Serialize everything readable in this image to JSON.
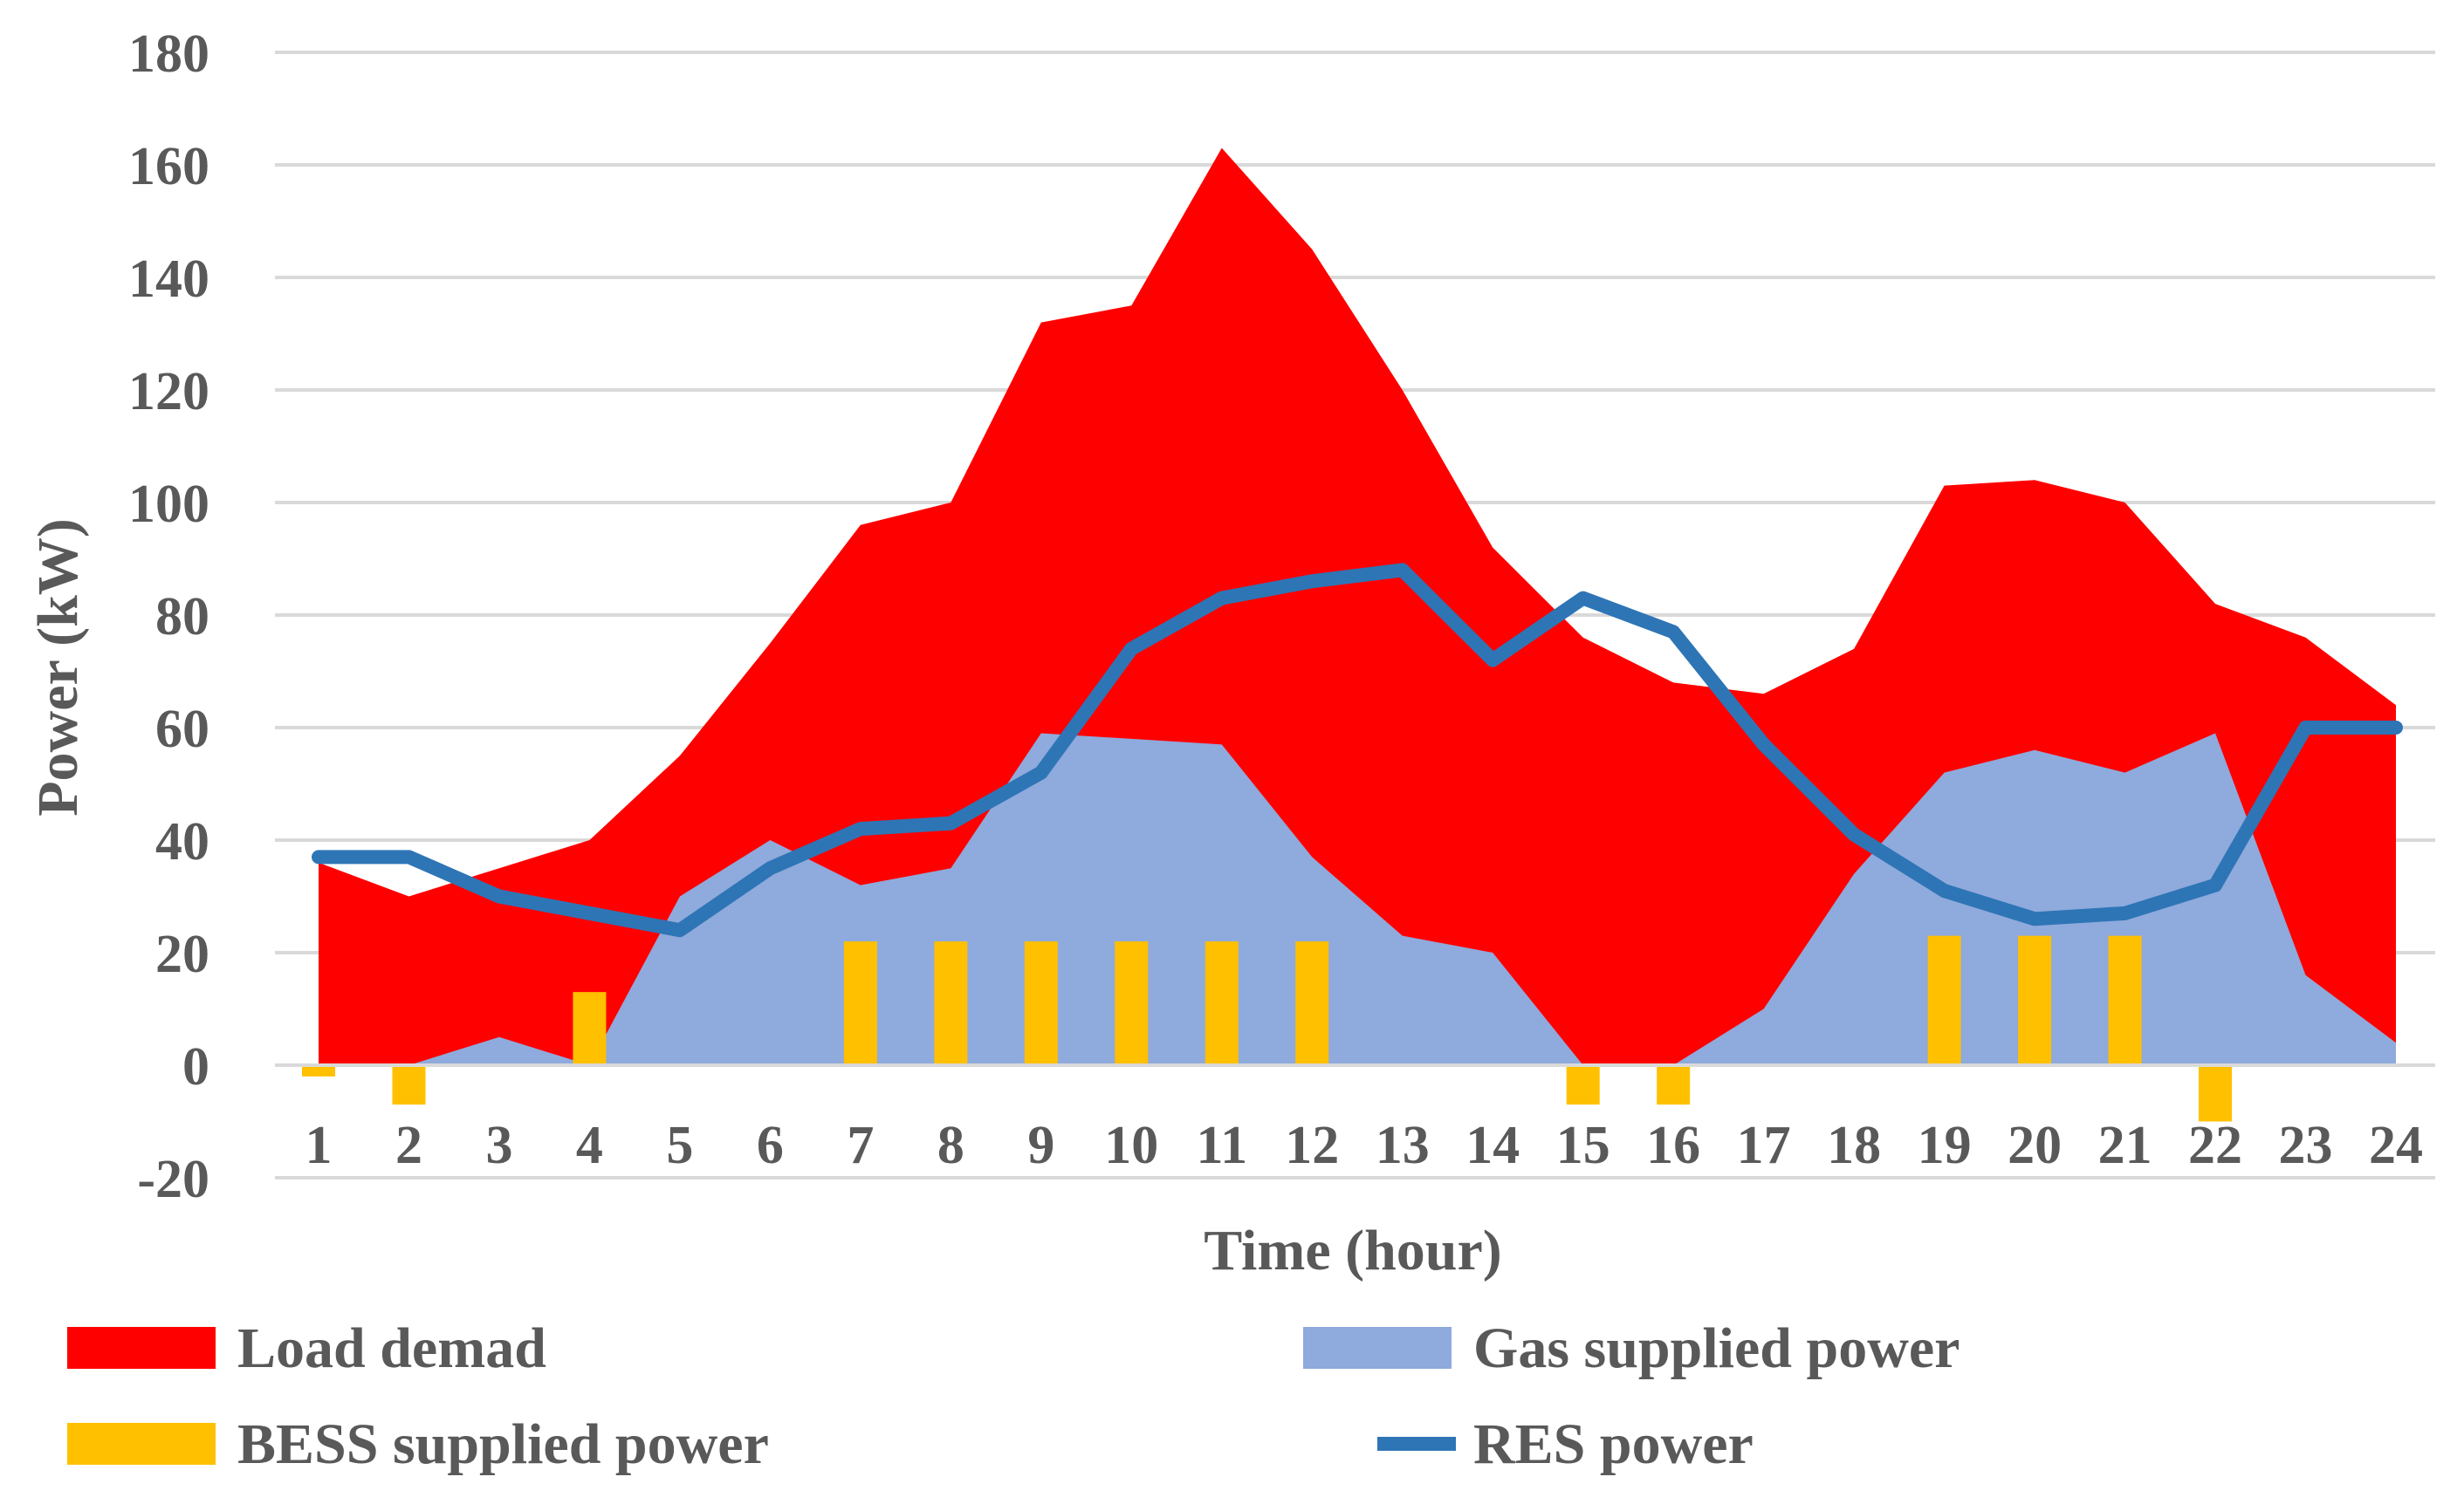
{
  "chart_data": {
    "type": "area",
    "title": "",
    "xlabel": "Time (hour)",
    "ylabel": "Power (kW)",
    "ylim": [
      -20,
      180
    ],
    "yticks": [
      -20,
      0,
      20,
      40,
      60,
      80,
      100,
      120,
      140,
      160,
      180
    ],
    "grid": true,
    "legend_position": "bottom",
    "categories": [
      "1",
      "2",
      "3",
      "4",
      "5",
      "6",
      "7",
      "8",
      "9",
      "10",
      "11",
      "12",
      "13",
      "14",
      "15",
      "16",
      "17",
      "18",
      "19",
      "20",
      "21",
      "22",
      "23",
      "24"
    ],
    "series": [
      {
        "name": "Load demad",
        "kind": "area",
        "color": "#FF0000",
        "values": [
          36,
          30,
          35,
          40,
          55,
          75,
          96,
          100,
          132,
          135,
          163,
          145,
          120,
          92,
          76,
          68,
          66,
          74,
          103,
          104,
          100,
          82,
          76,
          64
        ]
      },
      {
        "name": "Gas supplied power",
        "kind": "area",
        "color": "#8FAADC",
        "values": [
          0,
          0,
          5,
          0,
          30,
          40,
          32,
          35,
          59,
          58,
          57,
          37,
          23,
          20,
          0,
          0,
          10,
          34,
          52,
          56,
          52,
          59,
          16,
          4
        ]
      },
      {
        "name": "BESS supplied power",
        "kind": "bar",
        "color": "#FFC000",
        "values": [
          -2,
          -7,
          0,
          13,
          0,
          0,
          22,
          22,
          22,
          22,
          22,
          22,
          0,
          0,
          -7,
          -7,
          0,
          0,
          23,
          23,
          23,
          -10,
          0,
          0
        ]
      },
      {
        "name": "RES power",
        "kind": "line",
        "color": "#2E75B6",
        "values": [
          37,
          37,
          30,
          27,
          24,
          35,
          42,
          43,
          52,
          74,
          83,
          86,
          88,
          72,
          83,
          77,
          57,
          41,
          31,
          26,
          27,
          32,
          60,
          60
        ]
      }
    ]
  }
}
